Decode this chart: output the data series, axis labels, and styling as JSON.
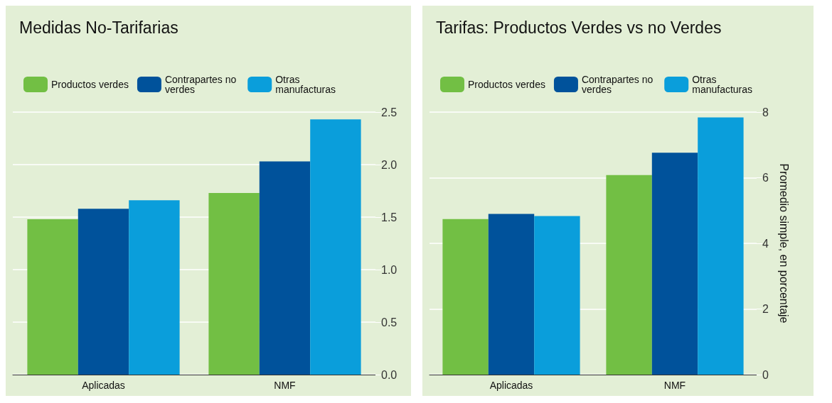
{
  "chart_data": [
    {
      "type": "bar",
      "title": "Medidas No-Tarifarias",
      "categories": [
        "Aplicadas",
        "NMF"
      ],
      "series": [
        {
          "name": "Productos verdes",
          "color": "#72bf44",
          "values": [
            1.48,
            1.73
          ]
        },
        {
          "name": "Contrapartes no verdes",
          "color": "#00529b",
          "values": [
            1.58,
            2.03
          ]
        },
        {
          "name": "Otras manufacturas",
          "color": "#0a9edb",
          "values": [
            1.66,
            2.43
          ]
        }
      ],
      "ylim": [
        0,
        2.5
      ],
      "yticks": [
        {
          "value": 0,
          "label": "0.0"
        },
        0.5,
        {
          "value": 1,
          "label": "1.0"
        },
        1.5,
        {
          "value": 2,
          "label": "2.0"
        },
        2.5
      ],
      "grid": "y",
      "legend": "top left"
    },
    {
      "type": "bar",
      "title": "Tarifas: Productos Verdes vs no Verdes",
      "ylabel": "Promedio simple, en porcentaje",
      "categories": [
        "Aplicadas",
        "NMF"
      ],
      "series": [
        {
          "name": "Productos verdes",
          "color": "#72bf44",
          "values": [
            4.74,
            6.08
          ]
        },
        {
          "name": "Contrapartes no verdes",
          "color": "#00529b",
          "values": [
            4.9,
            6.76
          ]
        },
        {
          "name": "Otras manufacturas",
          "color": "#0a9edb",
          "values": [
            4.83,
            7.84
          ]
        }
      ],
      "ylim": [
        0,
        8
      ],
      "yticks": [
        0,
        2,
        4,
        6,
        8
      ],
      "grid": "y",
      "legend": "top left"
    }
  ]
}
